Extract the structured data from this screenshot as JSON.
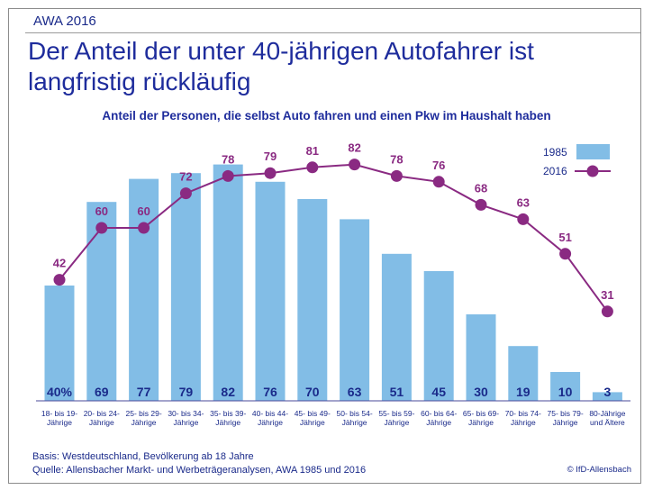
{
  "header": {
    "tag": "AWA 2016",
    "headline": "Der Anteil der unter 40-jährigen Autofahrer ist langfristig rückläufig"
  },
  "chart_data": {
    "type": "bar",
    "subtitle": "Anteil der Personen, die selbst Auto fahren und einen Pkw im Haushalt haben",
    "categories": [
      [
        "18- bis 19-",
        "Jährige"
      ],
      [
        "20- bis 24-",
        "Jährige"
      ],
      [
        "25- bis 29-",
        "Jährige"
      ],
      [
        "30- bis 34-",
        "Jährige"
      ],
      [
        "35- bis 39-",
        "Jährige"
      ],
      [
        "40- bis 44-",
        "Jährige"
      ],
      [
        "45- bis 49-",
        "Jährige"
      ],
      [
        "50- bis 54-",
        "Jährige"
      ],
      [
        "55- bis 59-",
        "Jährige"
      ],
      [
        "60- bis 64-",
        "Jährige"
      ],
      [
        "65- bis 69-",
        "Jährige"
      ],
      [
        "70- bis 74-",
        "Jährige"
      ],
      [
        "75- bis 79-",
        "Jährige"
      ],
      [
        "80-Jährige",
        "und Ältere"
      ]
    ],
    "series": [
      {
        "name": "1985",
        "type": "bar",
        "color": "#82bde6",
        "values": [
          40,
          69,
          77,
          79,
          82,
          76,
          70,
          63,
          51,
          45,
          30,
          19,
          10,
          3
        ],
        "labels": [
          "40%",
          "69",
          "77",
          "79",
          "82",
          "76",
          "70",
          "63",
          "51",
          "45",
          "30",
          "19",
          "10",
          "3"
        ]
      },
      {
        "name": "2016",
        "type": "line",
        "color": "#8a2a82",
        "values": [
          42,
          60,
          60,
          72,
          78,
          79,
          81,
          82,
          78,
          76,
          68,
          63,
          51,
          31
        ],
        "labels": [
          "42",
          "60",
          "60",
          "72",
          "78",
          "79",
          "81",
          "82",
          "78",
          "76",
          "68",
          "63",
          "51",
          "31"
        ]
      }
    ],
    "ylim": [
      0,
      100
    ],
    "grid": false,
    "legend": "top-right"
  },
  "footer": {
    "basis": "Basis: Westdeutschland, Bevölkerung ab 18 Jahre",
    "source": "Quelle: Allensbacher Markt- und Werbeträgeranalysen, AWA 1985 und 2016",
    "copyright": "© IfD-Allensbach"
  }
}
